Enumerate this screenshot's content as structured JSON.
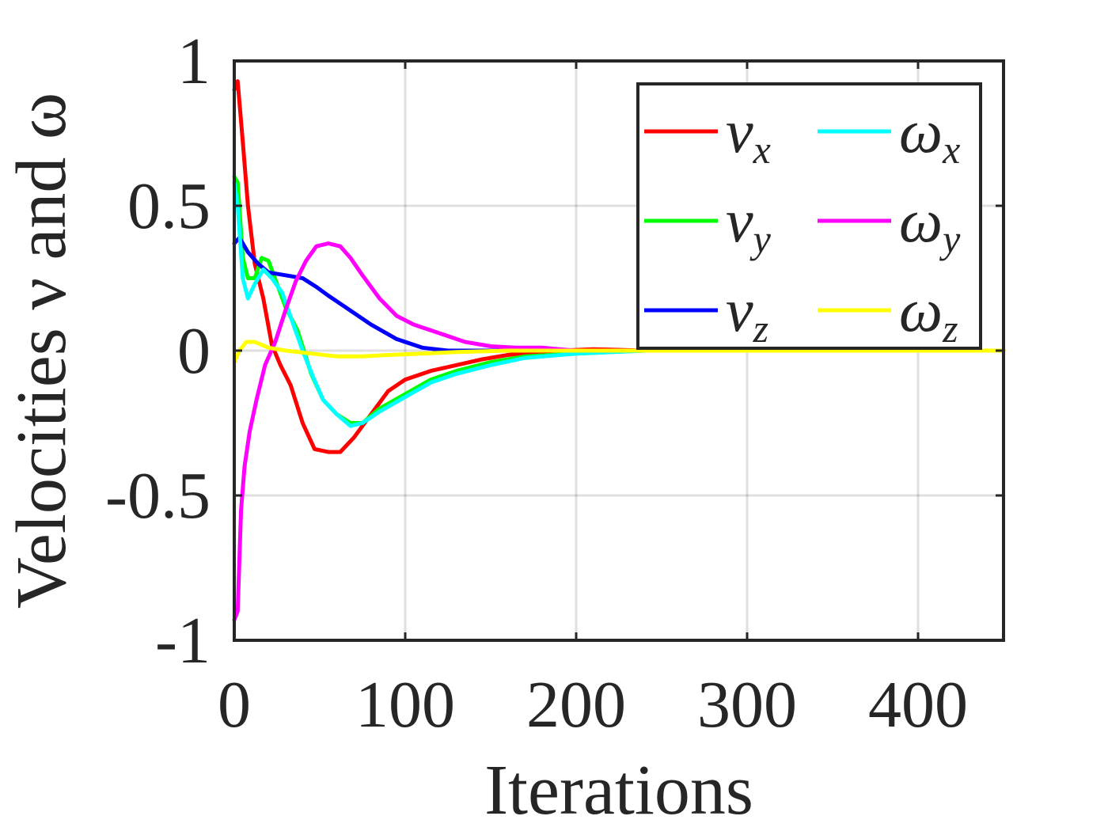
{
  "chart_data": {
    "type": "line",
    "title": "",
    "xlabel": "Iterations",
    "ylabel": "Velocities ν and ω",
    "xlim": [
      0,
      450
    ],
    "ylim": [
      -1,
      1
    ],
    "xticks": [
      0,
      100,
      200,
      300,
      400
    ],
    "yticks": [
      -1,
      -0.5,
      0,
      0.5,
      1
    ],
    "xtick_labels": [
      "0",
      "100",
      "200",
      "300",
      "400"
    ],
    "ytick_labels": [
      "-1",
      "-0.5",
      "0",
      "0.5",
      "1"
    ],
    "grid": true,
    "legend_position": "top-right",
    "legend_columns": 2,
    "series": [
      {
        "name": "νx",
        "symbol": "ν",
        "sub": "x",
        "color": "#ff0000",
        "x": [
          0,
          2,
          5,
          8,
          12,
          17,
          22,
          27,
          33,
          40,
          47,
          55,
          62,
          70,
          80,
          90,
          100,
          115,
          130,
          145,
          160,
          175,
          190,
          210,
          240,
          280,
          340,
          450
        ],
        "y": [
          0.9,
          0.93,
          0.72,
          0.5,
          0.3,
          0.18,
          0.02,
          -0.05,
          -0.12,
          -0.25,
          -0.34,
          -0.35,
          -0.35,
          -0.3,
          -0.22,
          -0.14,
          -0.1,
          -0.07,
          -0.05,
          -0.03,
          -0.015,
          -0.005,
          0.0,
          0.005,
          0.0,
          0.0,
          0.0,
          0.0
        ]
      },
      {
        "name": "νy",
        "symbol": "ν",
        "sub": "y",
        "color": "#00ff00",
        "x": [
          0,
          2,
          5,
          8,
          12,
          16,
          20,
          25,
          30,
          37,
          45,
          52,
          60,
          68,
          75,
          85,
          100,
          115,
          130,
          150,
          170,
          200,
          240,
          300,
          450
        ],
        "y": [
          0.6,
          0.58,
          0.32,
          0.25,
          0.25,
          0.32,
          0.31,
          0.23,
          0.15,
          0.07,
          -0.08,
          -0.17,
          -0.22,
          -0.25,
          -0.25,
          -0.2,
          -0.15,
          -0.1,
          -0.07,
          -0.04,
          -0.02,
          -0.01,
          0.0,
          0.0,
          0.0
        ]
      },
      {
        "name": "νz",
        "symbol": "ν",
        "sub": "z",
        "color": "#0000ff",
        "x": [
          0,
          3,
          8,
          14,
          20,
          30,
          40,
          48,
          55,
          65,
          80,
          95,
          110,
          125,
          140,
          160,
          200,
          250,
          450
        ],
        "y": [
          0.37,
          0.39,
          0.34,
          0.3,
          0.27,
          0.26,
          0.25,
          0.22,
          0.19,
          0.15,
          0.09,
          0.04,
          0.01,
          0.0,
          0.0,
          0.0,
          0.0,
          0.0,
          0.0
        ]
      },
      {
        "name": "ωx",
        "symbol": "ω",
        "sub": "x",
        "color": "#00ffff",
        "x": [
          0,
          2,
          5,
          8,
          12,
          17,
          22,
          28,
          34,
          40,
          46,
          52,
          60,
          68,
          75,
          85,
          100,
          115,
          130,
          150,
          170,
          200,
          240,
          300,
          450
        ],
        "y": [
          0.58,
          0.5,
          0.25,
          0.18,
          0.23,
          0.28,
          0.25,
          0.2,
          0.1,
          0.0,
          -0.09,
          -0.17,
          -0.22,
          -0.26,
          -0.25,
          -0.21,
          -0.16,
          -0.11,
          -0.08,
          -0.05,
          -0.025,
          -0.01,
          0.0,
          0.0,
          0.0
        ]
      },
      {
        "name": "ωy",
        "symbol": "ω",
        "sub": "y",
        "color": "#ff00ff",
        "x": [
          0,
          2,
          4,
          6,
          9,
          13,
          18,
          24,
          30,
          36,
          42,
          48,
          55,
          62,
          68,
          75,
          85,
          95,
          105,
          120,
          135,
          150,
          165,
          180,
          190,
          200,
          240,
          450
        ],
        "y": [
          -0.93,
          -0.9,
          -0.55,
          -0.4,
          -0.28,
          -0.17,
          -0.05,
          0.03,
          0.14,
          0.24,
          0.31,
          0.36,
          0.37,
          0.36,
          0.32,
          0.26,
          0.18,
          0.12,
          0.09,
          0.06,
          0.03,
          0.015,
          0.01,
          0.01,
          0.005,
          0.0,
          0.0,
          0.0
        ]
      },
      {
        "name": "ωz",
        "symbol": "ω",
        "sub": "z",
        "color": "#ffff00",
        "x": [
          0,
          3,
          7,
          12,
          20,
          30,
          45,
          60,
          75,
          90,
          110,
          130,
          160,
          200,
          250,
          450
        ],
        "y": [
          -0.04,
          0.0,
          0.03,
          0.03,
          0.01,
          0.0,
          -0.01,
          -0.02,
          -0.02,
          -0.015,
          -0.01,
          -0.005,
          0.0,
          0.0,
          0.0,
          0.0
        ]
      }
    ]
  }
}
